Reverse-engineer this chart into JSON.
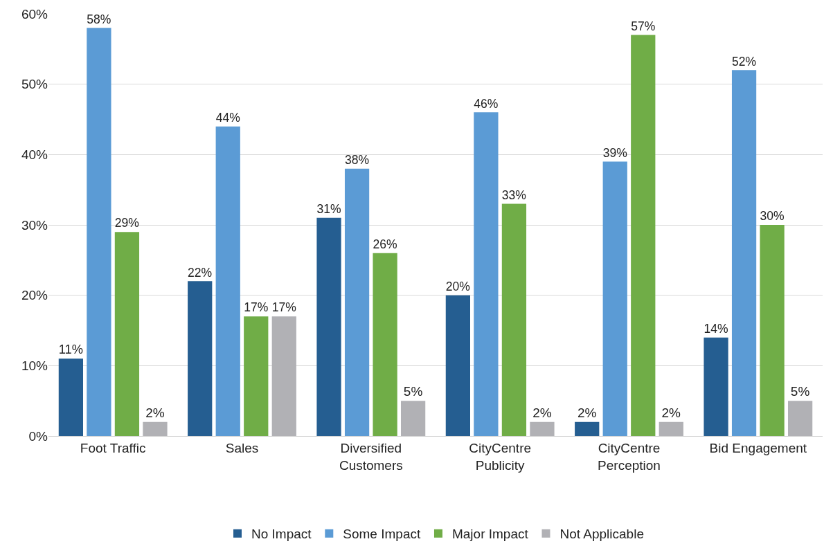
{
  "chart_data": {
    "type": "bar",
    "categories": [
      "Foot Traffic",
      "Sales",
      "Diversified\nCustomers",
      "CityCentre\nPublicity",
      "CityCentre\nPerception",
      "Bid Engagement"
    ],
    "series": [
      {
        "name": "No Impact",
        "color": "#255e91",
        "values": [
          11,
          22,
          31,
          20,
          2,
          14
        ],
        "value_labels": [
          "11%",
          "22%",
          "31%",
          "20%",
          "2%",
          "14%"
        ]
      },
      {
        "name": "Some Impact",
        "color": "#5b9bd5",
        "values": [
          58,
          44,
          38,
          46,
          39,
          52
        ],
        "value_labels": [
          "58%",
          "44%",
          "38%",
          "46%",
          "39%",
          "52%"
        ]
      },
      {
        "name": "Major Impact",
        "color": "#70ad47",
        "values": [
          29,
          17,
          26,
          33,
          57,
          30
        ],
        "value_labels": [
          "29%",
          "17%",
          "26%",
          "33%",
          "57%",
          "30%"
        ]
      },
      {
        "name": "Not Applicable",
        "color": "#b1b1b5",
        "values": [
          2,
          17,
          5,
          2,
          2,
          5
        ],
        "value_labels": [
          "2%",
          "17%",
          "5%",
          "2%",
          "2%",
          "5%"
        ]
      }
    ],
    "ylim": [
      0,
      60
    ],
    "yticks": [
      {
        "value": 0,
        "label": "0%"
      },
      {
        "value": 10,
        "label": "10%"
      },
      {
        "value": 20,
        "label": "20%"
      },
      {
        "value": 30,
        "label": "30%"
      },
      {
        "value": 40,
        "label": "40%"
      },
      {
        "value": 50,
        "label": "50%"
      },
      {
        "value": 60,
        "label": "60%"
      }
    ],
    "grid": "y",
    "legend": "bottom"
  }
}
